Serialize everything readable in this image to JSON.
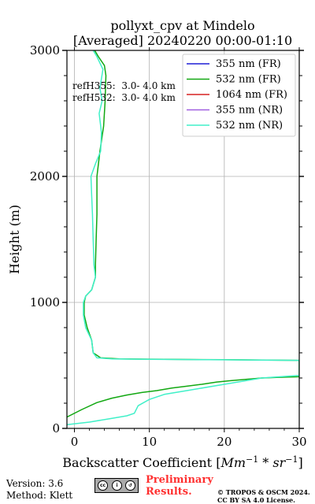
{
  "chart_data": {
    "type": "line",
    "title": "pollyxt_cpv at Mindelo",
    "subtitle": "[Averaged] 20240220 00:00-01:10",
    "xlabel": "Backscatter Coefficient [",
    "xlabel_math": "Mm",
    "xlabel_math_sup1": "−1",
    "xlabel_math_mid": " * sr",
    "xlabel_math_sup2": "−1",
    "xlabel_end": "]",
    "ylabel": "Height (m)",
    "xlim": [
      -1,
      30
    ],
    "ylim": [
      0,
      3000
    ],
    "xticks": [
      0,
      10,
      20,
      30
    ],
    "yticks": [
      0,
      1000,
      2000,
      3000
    ],
    "grid": true,
    "legend_position": "top-right",
    "annotations": [
      "refH355:  3.0- 4.0 km",
      "refH532:  3.0- 4.0 km"
    ],
    "series": [
      {
        "name": "355 nm (FR)",
        "color": "#1f1fd6",
        "points": []
      },
      {
        "name": "532 nm (FR)",
        "color": "#12a812",
        "points": [
          [
            -1,
            90
          ],
          [
            1,
            150
          ],
          [
            3,
            205
          ],
          [
            5,
            240
          ],
          [
            7,
            265
          ],
          [
            9,
            285
          ],
          [
            11,
            300
          ],
          [
            13,
            320
          ],
          [
            15,
            335
          ],
          [
            17,
            350
          ],
          [
            19,
            368
          ],
          [
            21,
            380
          ],
          [
            23,
            390
          ],
          [
            25,
            400
          ],
          [
            27,
            405
          ],
          [
            30,
            410
          ],
          [
            30,
            540
          ],
          [
            20,
            545
          ],
          [
            12,
            548
          ],
          [
            6,
            552
          ],
          [
            3.5,
            560
          ],
          [
            2.5,
            600
          ],
          [
            2.3,
            700
          ],
          [
            1.7,
            800
          ],
          [
            1.3,
            900
          ],
          [
            1.3,
            1000
          ],
          [
            1.5,
            1050
          ],
          [
            2.3,
            1100
          ],
          [
            2.8,
            1200
          ],
          [
            2.8,
            1300
          ],
          [
            2.9,
            1500
          ],
          [
            3.0,
            1700
          ],
          [
            3.0,
            2000
          ],
          [
            3.4,
            2200
          ],
          [
            3.9,
            2400
          ],
          [
            4.1,
            2600
          ],
          [
            4.2,
            2800
          ],
          [
            4.0,
            2880
          ],
          [
            3.2,
            2950
          ],
          [
            2.7,
            3000
          ]
        ]
      },
      {
        "name": "1064 nm (FR)",
        "color": "#d62020",
        "points": []
      },
      {
        "name": "355 nm (NR)",
        "color": "#a060e0",
        "points": []
      },
      {
        "name": "532 nm (NR)",
        "color": "#40f0c8",
        "points": [
          [
            -1,
            30
          ],
          [
            2,
            50
          ],
          [
            5,
            80
          ],
          [
            7,
            100
          ],
          [
            8,
            120
          ],
          [
            8.5,
            180
          ],
          [
            10,
            230
          ],
          [
            12,
            270
          ],
          [
            15,
            300
          ],
          [
            20,
            350
          ],
          [
            25,
            400
          ],
          [
            30,
            420
          ],
          [
            30,
            540
          ],
          [
            18,
            545
          ],
          [
            10,
            548
          ],
          [
            5,
            552
          ],
          [
            3,
            560
          ],
          [
            2.5,
            600
          ],
          [
            2.3,
            700
          ],
          [
            1.5,
            800
          ],
          [
            1.2,
            900
          ],
          [
            1.2,
            1000
          ],
          [
            1.5,
            1050
          ],
          [
            2.3,
            1100
          ],
          [
            2.8,
            1200
          ],
          [
            2.6,
            1300
          ],
          [
            2.5,
            1500
          ],
          [
            2.4,
            1700
          ],
          [
            2.3,
            1850
          ],
          [
            2.2,
            2000
          ],
          [
            2.8,
            2100
          ],
          [
            3.5,
            2200
          ],
          [
            3.6,
            2350
          ],
          [
            3.3,
            2500
          ],
          [
            3.7,
            2600
          ],
          [
            3.4,
            2700
          ],
          [
            3.8,
            2850
          ],
          [
            3.0,
            2950
          ],
          [
            2.5,
            3000
          ]
        ]
      }
    ]
  },
  "footer": {
    "version": "Version: 3.6",
    "method": "Method: Klett",
    "preliminary_line1": "Preliminary",
    "preliminary_line2": "Results.",
    "license_line1": "© TROPOS & OSCM 2024.",
    "license_line2": "CC BY SA 4.0 License.",
    "cc_logo_text": "cc BY SA"
  }
}
